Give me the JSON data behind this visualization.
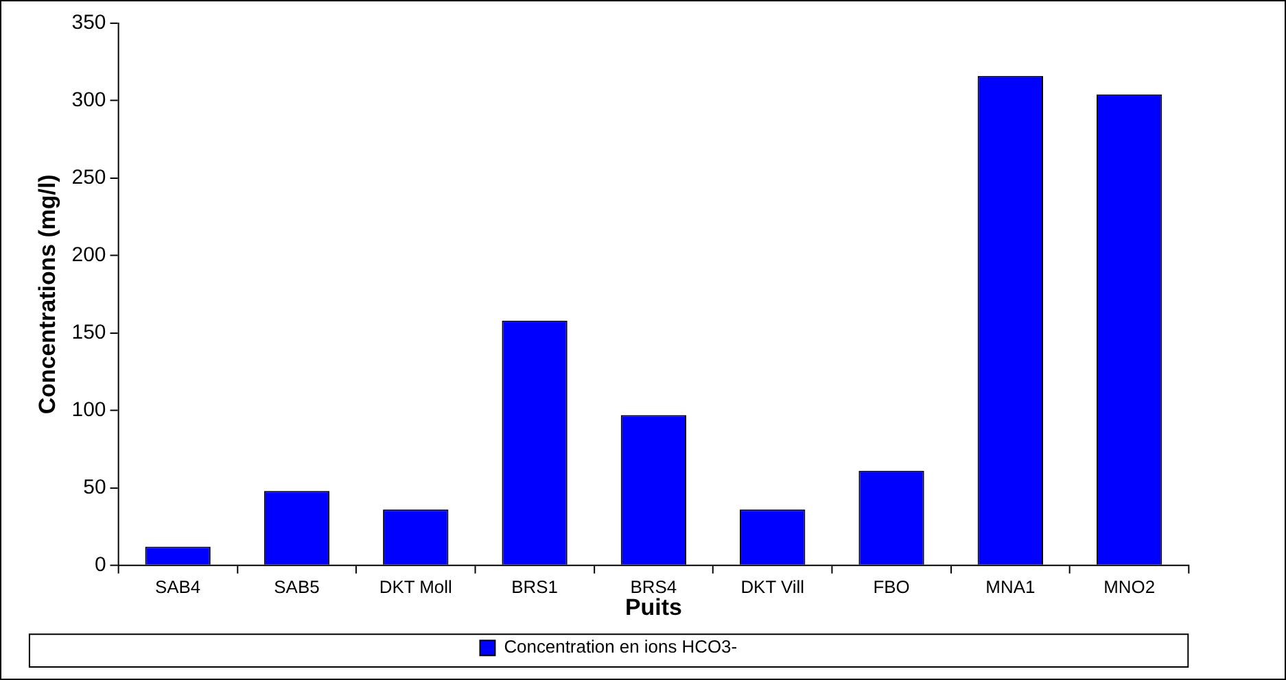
{
  "chart_data": {
    "type": "bar",
    "xlabel": "Puits",
    "ylabel": "Concentrations (mg/l)",
    "categories": [
      "SAB4",
      "SAB5",
      "DKT Moll",
      "BRS1",
      "BRS4",
      "DKT Vill",
      "FBO",
      "MNA1",
      "MNO2"
    ],
    "series": [
      {
        "name": "Concentration en ions HCO3-",
        "color": "#0000ff",
        "values": [
          12,
          48,
          36,
          158,
          97,
          36,
          61,
          316,
          304
        ]
      }
    ],
    "ylim": [
      0,
      350
    ],
    "yticks": [
      0,
      50,
      100,
      150,
      200,
      250,
      300,
      350
    ],
    "grid": false,
    "legend": "bottom"
  }
}
